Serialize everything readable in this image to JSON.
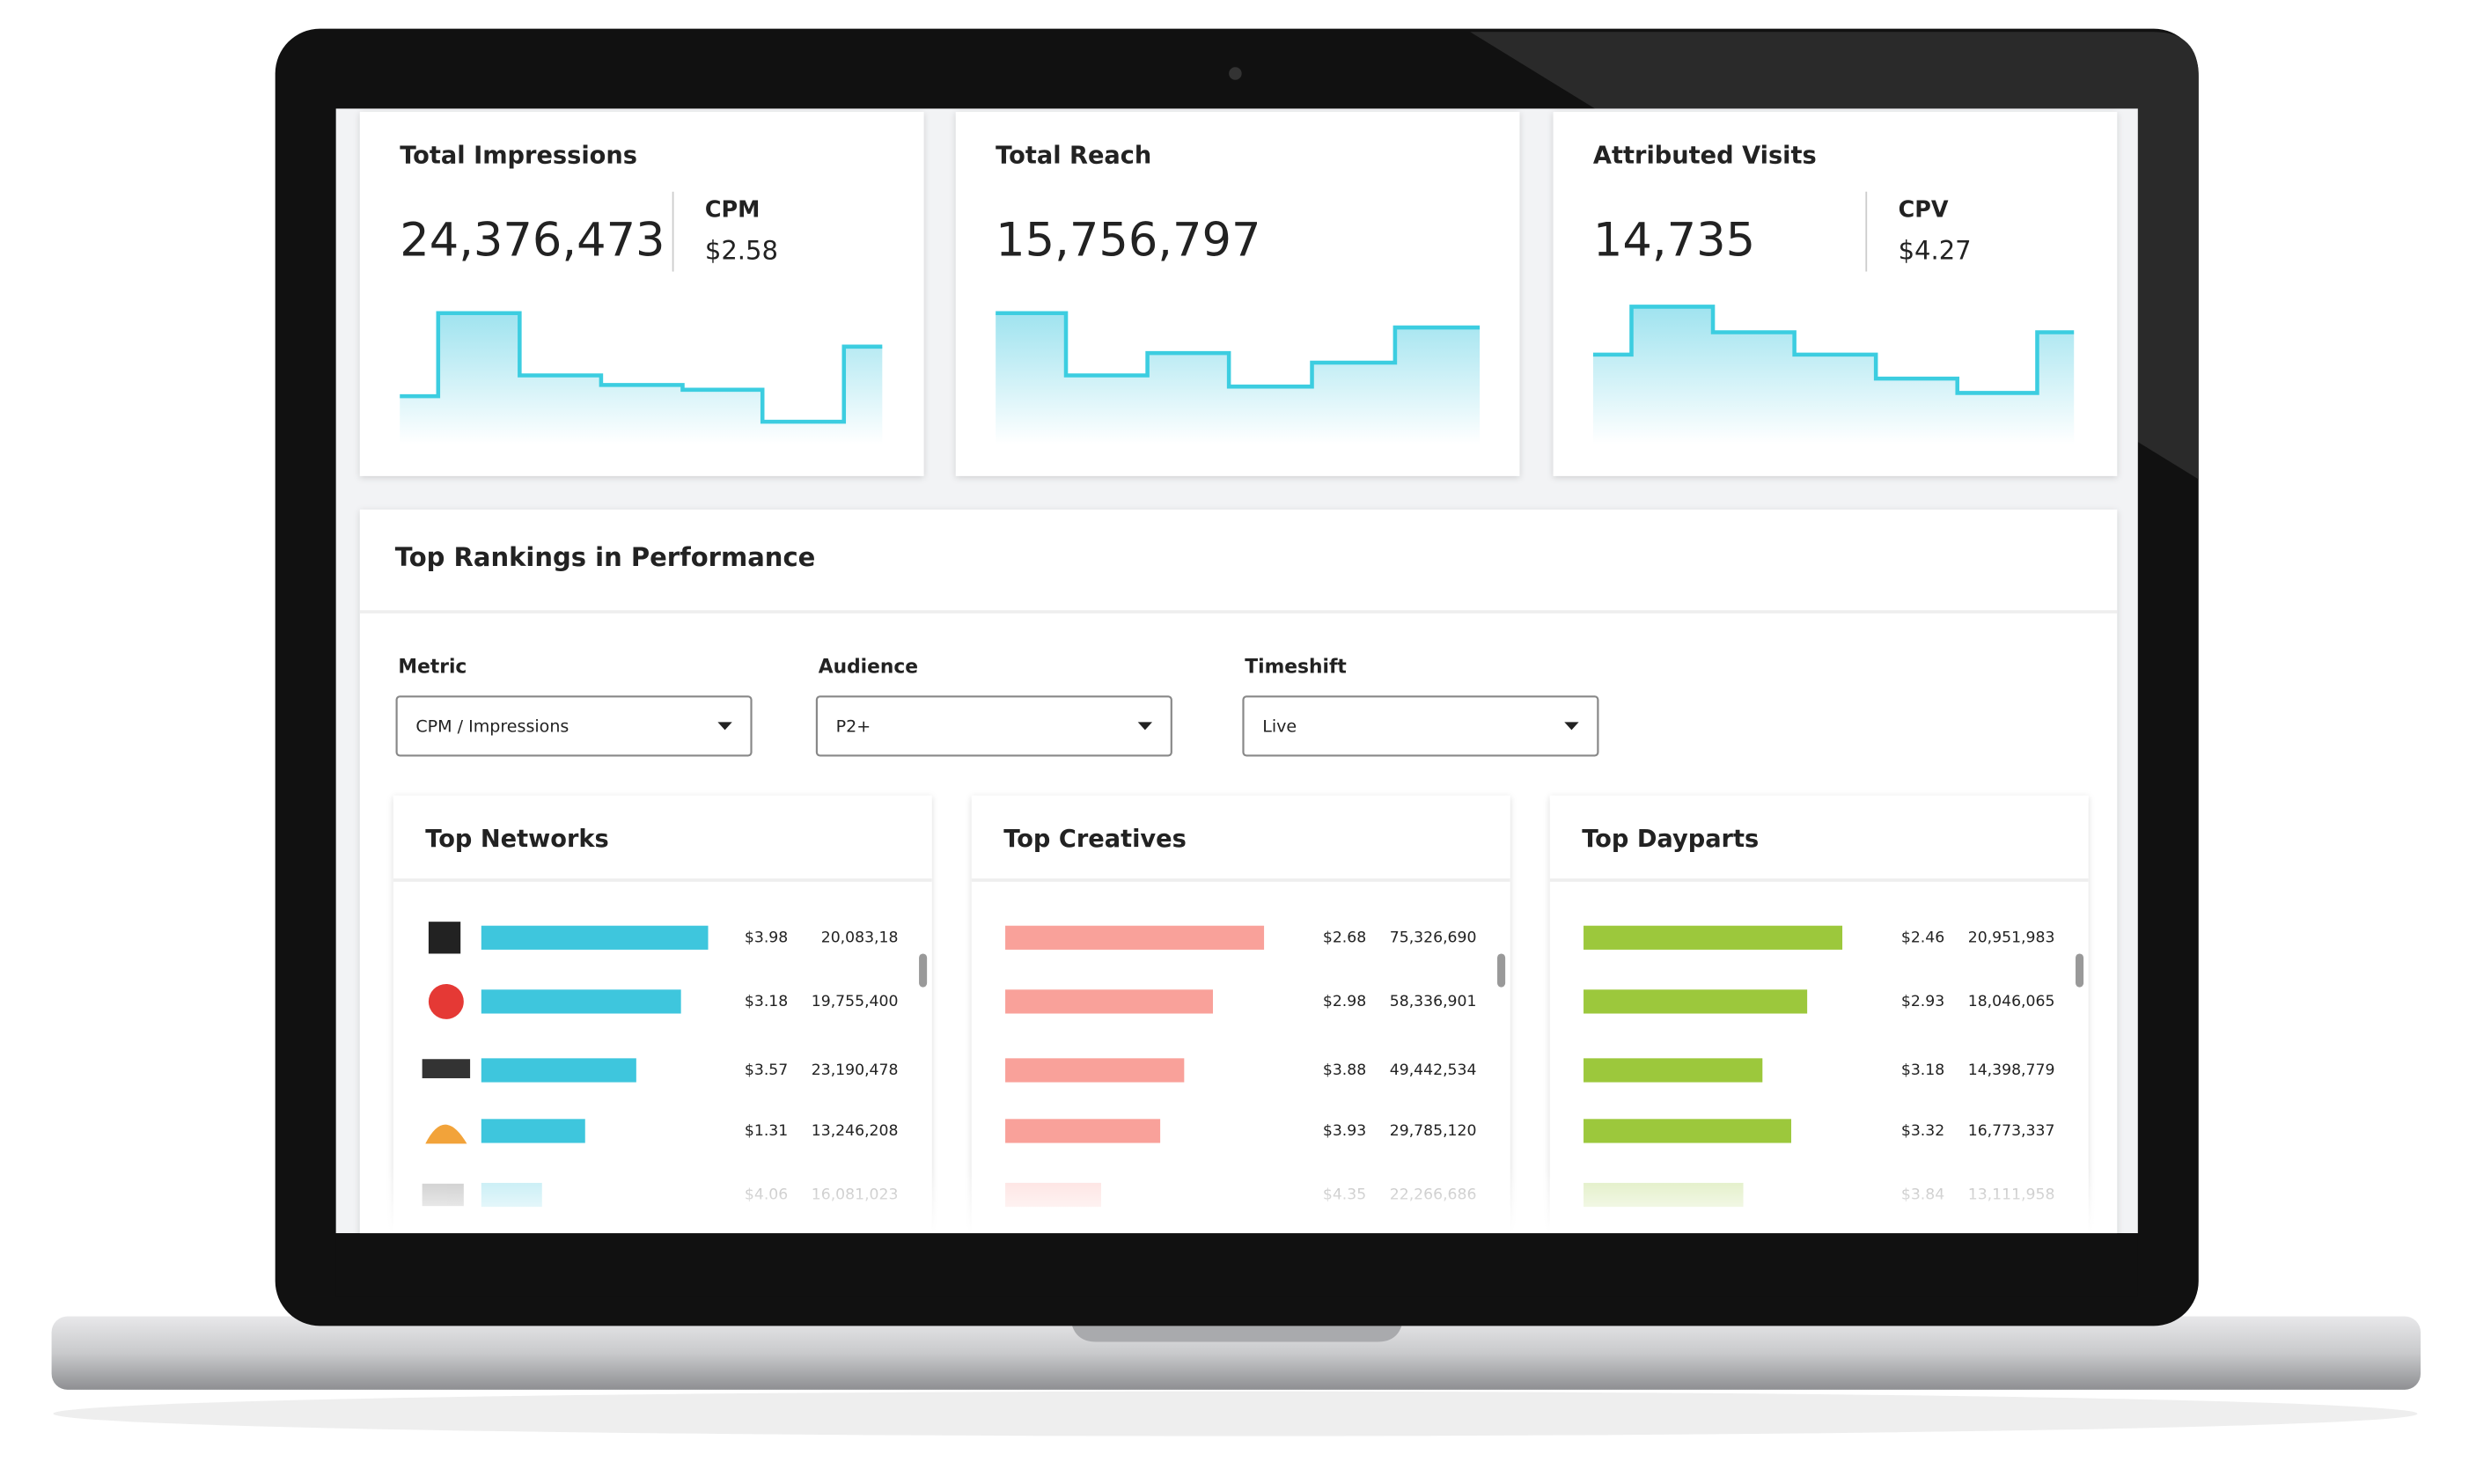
{
  "cards": [
    {
      "title": "Total Impressions",
      "value": "24,376,473",
      "sub_label": "CPM",
      "sub_value": "$2.58"
    },
    {
      "title": "Total Reach",
      "value": "15,756,797"
    },
    {
      "title": "Attributed Visits",
      "value": "14,735",
      "sub_label": "CPV",
      "sub_value": "$4.27"
    }
  ],
  "rankings": {
    "title": "Top Rankings in Performance",
    "filters": [
      {
        "label": "Metric",
        "selected": "CPM / Impressions"
      },
      {
        "label": "Audience",
        "selected": "P2+"
      },
      {
        "label": "Timeshift",
        "selected": "Live"
      }
    ],
    "panels": [
      {
        "title": "Top Networks",
        "rows": [
          {
            "cost": "$3.98",
            "count": "20,083,18"
          },
          {
            "cost": "$3.18",
            "count": "19,755,400"
          },
          {
            "cost": "$3.57",
            "count": "23,190,478"
          },
          {
            "cost": "$1.31",
            "count": "13,246,208"
          },
          {
            "cost": "$4.06",
            "count": "16,081,023"
          }
        ]
      },
      {
        "title": "Top Creatives",
        "rows": [
          {
            "cost": "$2.68",
            "count": "75,326,690"
          },
          {
            "cost": "$2.98",
            "count": "58,336,901"
          },
          {
            "cost": "$3.88",
            "count": "49,442,534"
          },
          {
            "cost": "$3.93",
            "count": "29,785,120"
          },
          {
            "cost": "$4.35",
            "count": "22,266,686"
          }
        ]
      },
      {
        "title": "Top Dayparts",
        "rows": [
          {
            "cost": "$2.46",
            "count": "20,951,983"
          },
          {
            "cost": "$2.93",
            "count": "18,046,065"
          },
          {
            "cost": "$3.18",
            "count": "14,398,779"
          },
          {
            "cost": "$3.32",
            "count": "16,773,337"
          },
          {
            "cost": "$3.84",
            "count": "13,111,958"
          }
        ]
      }
    ]
  }
}
